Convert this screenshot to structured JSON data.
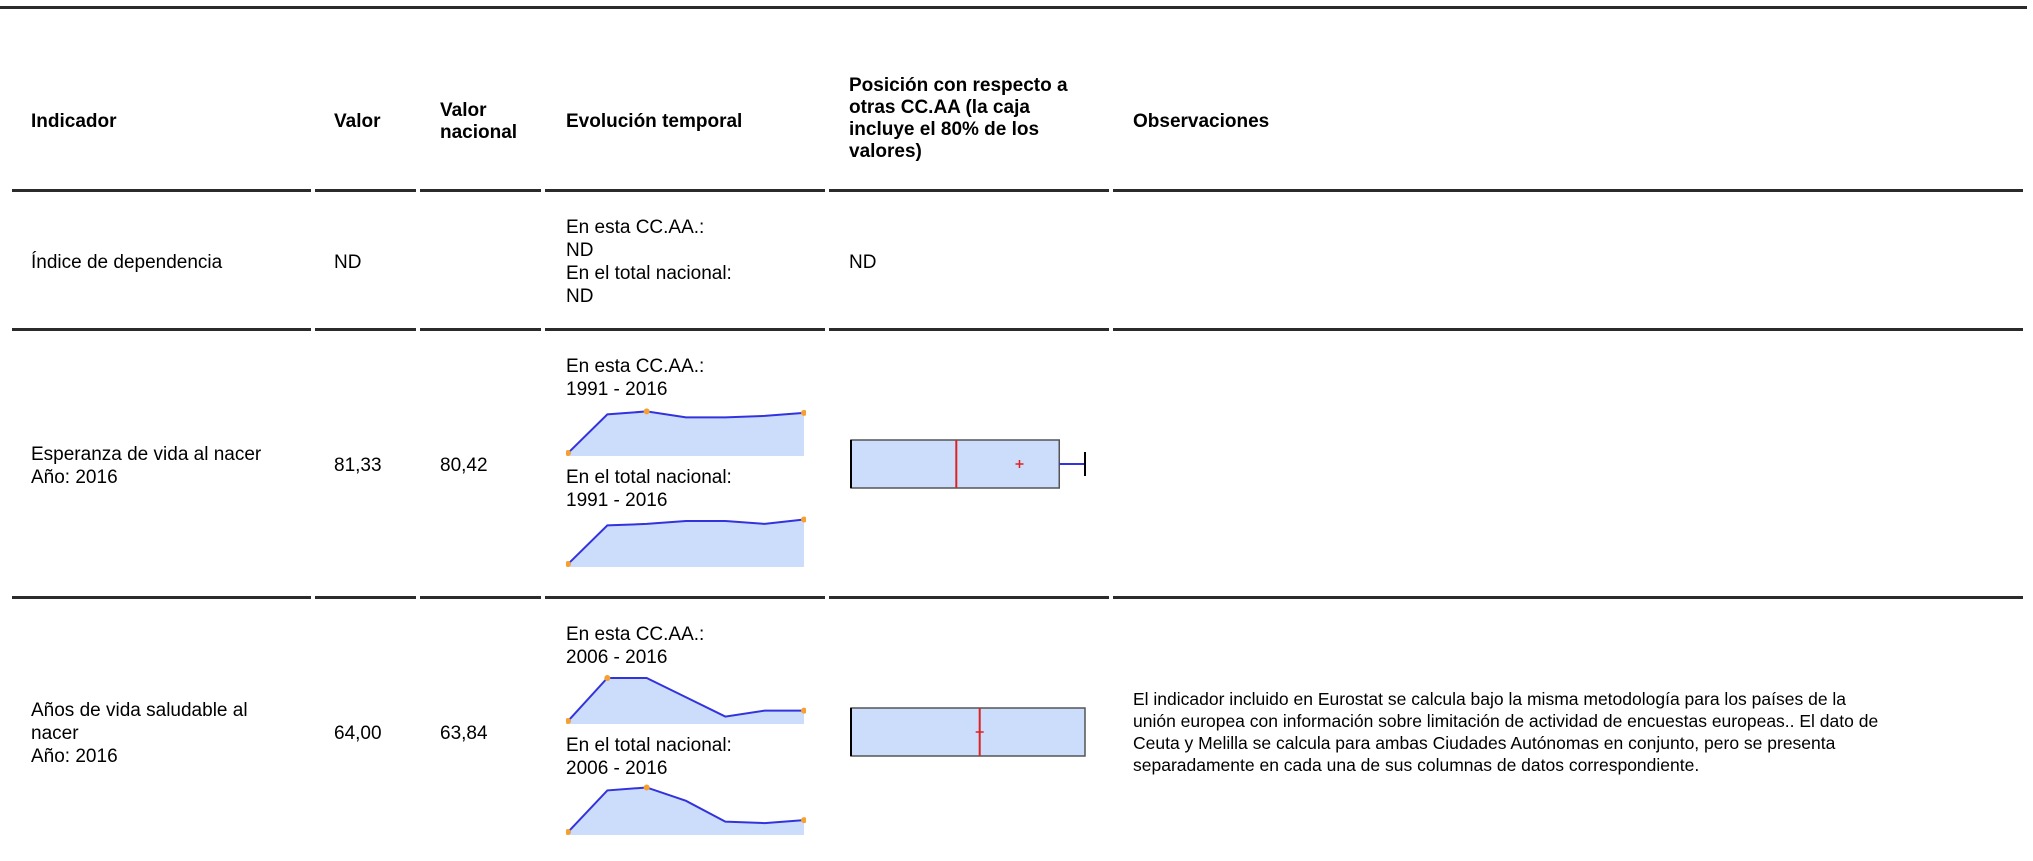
{
  "columns": {
    "indicator": "Indicador",
    "value": "Valor",
    "national": [
      "Valor",
      "nacional"
    ],
    "evolution": "Evolución temporal",
    "position": [
      "Posición con respecto a",
      "otras CC.AA (la caja",
      "incluye el 80% de los",
      "valores)"
    ],
    "observations": "Observaciones"
  },
  "rows": [
    {
      "indicator": [
        "Índice de dependencia"
      ],
      "value": "ND",
      "national": "",
      "region_label": "En esta CC.AA.:",
      "region_range": "ND",
      "national_label": "En el total nacional:",
      "national_range": "ND",
      "position": "ND",
      "observations": []
    },
    {
      "indicator": [
        "Esperanza de vida al nacer",
        "Año: 2016"
      ],
      "value": "81,33",
      "national": "80,42",
      "region_label": "En esta CC.AA.:",
      "region_range": "1991 - 2016",
      "national_label": "En el total nacional:",
      "national_range": "1991 - 2016",
      "region_series": [
        62,
        88,
        90,
        86,
        86,
        87,
        89
      ],
      "national_series": [
        62,
        88,
        89,
        91,
        91,
        89,
        92
      ],
      "boxplot": {
        "box_low": 0.0,
        "box_high": 0.89,
        "median": 0.45,
        "value": 0.72,
        "whisker_high": 1.0,
        "whisker_low": 0.0
      },
      "observations": []
    },
    {
      "indicator": [
        "Años de vida saludable al",
        "nacer",
        "Año: 2016"
      ],
      "value": "64,00",
      "national": "63,84",
      "region_label": "En esta CC.AA.:",
      "region_range": "2006 - 2016",
      "national_label": "En el total nacional:",
      "national_range": "2006 - 2016",
      "region_series": [
        62,
        91,
        91,
        78,
        65,
        69,
        69
      ],
      "national_series": [
        62,
        90,
        92,
        83,
        69,
        68,
        70
      ],
      "boxplot": {
        "box_low": 0.0,
        "box_high": 1.0,
        "median": 0.55,
        "value": 0.55,
        "whisker_high": 1.0,
        "whisker_low": 0.0
      },
      "observations": [
        "El indicador incluido en Eurostat se calcula bajo la misma metodología para los países de la",
        "unión europea con información sobre limitación de actividad de encuestas europeas.. El dato de",
        "Ceuta y Melilla se calcula para ambas Ciudades Autónomas en conjunto, pero se presenta",
        "separadamente en cada una de sus columnas de datos correspondiente."
      ]
    }
  ],
  "colors": {
    "fill": "#ccdcfb",
    "line": "#3333dd",
    "dot": "#f5a030",
    "median": "#dd2222",
    "rule": "#2b2b2b"
  }
}
